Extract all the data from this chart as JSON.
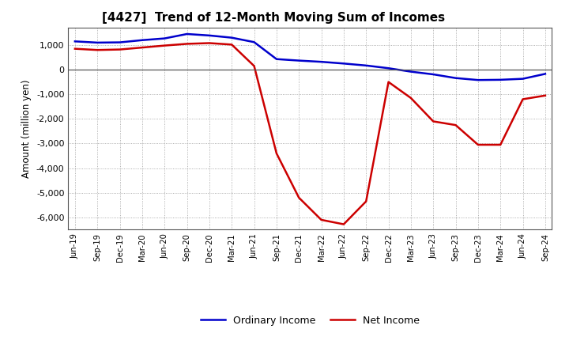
{
  "title": "[4427]  Trend of 12-Month Moving Sum of Incomes",
  "ylabel": "Amount (million yen)",
  "x_labels": [
    "Jun-19",
    "Sep-19",
    "Dec-19",
    "Mar-20",
    "Jun-20",
    "Sep-20",
    "Dec-20",
    "Mar-21",
    "Jun-21",
    "Sep-21",
    "Dec-21",
    "Mar-22",
    "Jun-22",
    "Sep-22",
    "Dec-22",
    "Mar-23",
    "Jun-23",
    "Sep-23",
    "Dec-23",
    "Mar-24",
    "Jun-24",
    "Sep-24"
  ],
  "ordinary_income": [
    1150,
    1100,
    1110,
    1200,
    1270,
    1450,
    1390,
    1300,
    1120,
    430,
    370,
    320,
    250,
    170,
    60,
    -80,
    -190,
    -340,
    -420,
    -410,
    -370,
    -170
  ],
  "net_income": [
    850,
    800,
    820,
    900,
    980,
    1050,
    1080,
    1020,
    150,
    -3400,
    -5200,
    -6100,
    -6280,
    -5350,
    -500,
    -1150,
    -2100,
    -2250,
    -3050,
    -3050,
    -1200,
    -1050
  ],
  "ordinary_income_color": "#0000cc",
  "net_income_color": "#cc0000",
  "ylim": [
    -6500,
    1700
  ],
  "yticks": [
    1000,
    0,
    -1000,
    -2000,
    -3000,
    -4000,
    -5000,
    -6000
  ],
  "background_color": "#ffffff",
  "plot_bg_color": "#ffffff",
  "grid_color": "#999999",
  "legend_labels": [
    "Ordinary Income",
    "Net Income"
  ]
}
